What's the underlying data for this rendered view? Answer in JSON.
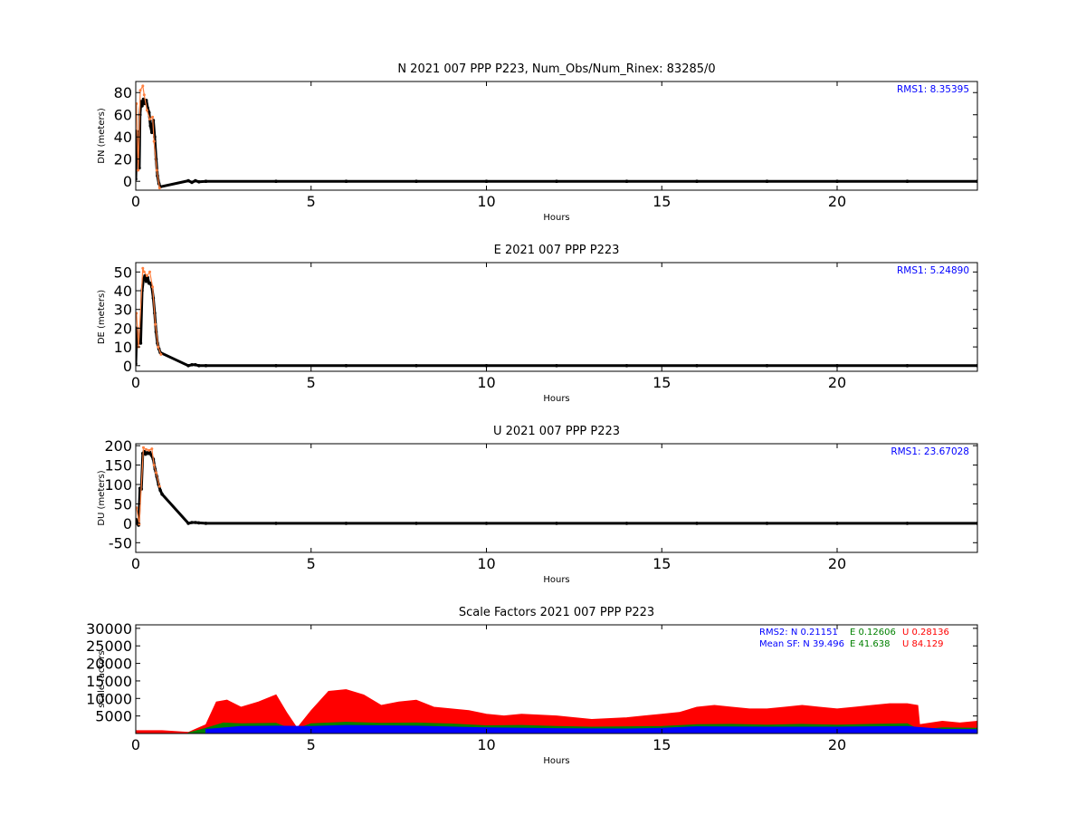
{
  "chart_data": [
    {
      "type": "scatter",
      "title": "N 2021 007 PPP  P223, Num_Obs/Num_Rinex: 83285/0",
      "xlabel": "Hours",
      "ylabel": "DN (meters)",
      "xlim": [
        0,
        24
      ],
      "ylim": [
        -8,
        90
      ],
      "xticks": [
        0,
        5,
        10,
        15,
        20
      ],
      "yticks": [
        0,
        20,
        40,
        60,
        80
      ],
      "annotation": "RMS1:  8.35395",
      "annotation_color": "#0000ff",
      "series": [
        {
          "color": "#000000",
          "points": [
            [
              0.0,
              2
            ],
            [
              0.03,
              45
            ],
            [
              0.06,
              30
            ],
            [
              0.08,
              20
            ],
            [
              0.1,
              12
            ],
            [
              0.12,
              60
            ],
            [
              0.15,
              72
            ],
            [
              0.18,
              68
            ],
            [
              0.22,
              74
            ],
            [
              0.26,
              70
            ],
            [
              0.3,
              73
            ],
            [
              0.34,
              66
            ],
            [
              0.38,
              62
            ],
            [
              0.42,
              50
            ],
            [
              0.46,
              44
            ],
            [
              0.5,
              55
            ],
            [
              0.54,
              40
            ],
            [
              0.58,
              20
            ],
            [
              0.62,
              5
            ],
            [
              0.66,
              -2
            ],
            [
              0.7,
              -5
            ],
            [
              1.5,
              0.5
            ],
            [
              1.6,
              -1
            ],
            [
              1.7,
              0.5
            ],
            [
              1.8,
              -0.5
            ],
            [
              2.0,
              0
            ],
            [
              4,
              0
            ],
            [
              6,
              0
            ],
            [
              8,
              0
            ],
            [
              10,
              0
            ],
            [
              12,
              0
            ],
            [
              14,
              0
            ],
            [
              16,
              0
            ],
            [
              18,
              0
            ],
            [
              20,
              0
            ],
            [
              22,
              0
            ],
            [
              24,
              0
            ]
          ]
        },
        {
          "color": "#ff7f3f",
          "points": [
            [
              0.02,
              70
            ],
            [
              0.07,
              10
            ],
            [
              0.13,
              82
            ],
            [
              0.2,
              86
            ],
            [
              0.24,
              78
            ],
            [
              0.32,
              64
            ],
            [
              0.4,
              56
            ],
            [
              0.48,
              58
            ],
            [
              0.52,
              36
            ],
            [
              0.6,
              10
            ],
            [
              0.68,
              -6
            ]
          ]
        }
      ]
    },
    {
      "type": "scatter",
      "title": "E 2021 007 PPP  P223",
      "xlabel": "Hours",
      "ylabel": "DE (meters)",
      "xlim": [
        0,
        24
      ],
      "ylim": [
        -3,
        55
      ],
      "xticks": [
        0,
        5,
        10,
        15,
        20
      ],
      "yticks": [
        0,
        10,
        20,
        30,
        40,
        50
      ],
      "annotation": "RMS1:  5.24890",
      "annotation_color": "#0000ff",
      "series": [
        {
          "color": "#000000",
          "points": [
            [
              0.0,
              1
            ],
            [
              0.03,
              20
            ],
            [
              0.06,
              12
            ],
            [
              0.1,
              14
            ],
            [
              0.14,
              12
            ],
            [
              0.18,
              40
            ],
            [
              0.22,
              46
            ],
            [
              0.26,
              48
            ],
            [
              0.3,
              45
            ],
            [
              0.34,
              47
            ],
            [
              0.38,
              44
            ],
            [
              0.42,
              44
            ],
            [
              0.46,
              42
            ],
            [
              0.5,
              36
            ],
            [
              0.54,
              28
            ],
            [
              0.58,
              18
            ],
            [
              0.62,
              12
            ],
            [
              0.66,
              9
            ],
            [
              0.7,
              7
            ],
            [
              1.5,
              0
            ],
            [
              1.6,
              0.5
            ],
            [
              1.7,
              0.5
            ],
            [
              1.8,
              0
            ],
            [
              2.0,
              0
            ],
            [
              4,
              0
            ],
            [
              6,
              0
            ],
            [
              8,
              0
            ],
            [
              10,
              0
            ],
            [
              12,
              0
            ],
            [
              14,
              0
            ],
            [
              16,
              0
            ],
            [
              18,
              0
            ],
            [
              20,
              0
            ],
            [
              22,
              0
            ],
            [
              24,
              0
            ]
          ]
        },
        {
          "color": "#ff7f3f",
          "points": [
            [
              0.02,
              28
            ],
            [
              0.08,
              10
            ],
            [
              0.2,
              52
            ],
            [
              0.24,
              50
            ],
            [
              0.32,
              48
            ],
            [
              0.4,
              50
            ],
            [
              0.48,
              42
            ],
            [
              0.56,
              22
            ],
            [
              0.64,
              10
            ],
            [
              0.72,
              6
            ]
          ]
        }
      ]
    },
    {
      "type": "scatter",
      "title": "U 2021 007 PPP  P223",
      "xlabel": "Hours",
      "ylabel": "DU (meters)",
      "xlim": [
        0,
        24
      ],
      "ylim": [
        -75,
        205
      ],
      "xticks": [
        0,
        5,
        10,
        15,
        20
      ],
      "yticks": [
        -50,
        0,
        50,
        100,
        150,
        200
      ],
      "annotation": "RMS1: 23.67028",
      "annotation_color": "#0000ff",
      "series": [
        {
          "color": "#000000",
          "points": [
            [
              0.0,
              10
            ],
            [
              0.04,
              0
            ],
            [
              0.08,
              -5
            ],
            [
              0.12,
              90
            ],
            [
              0.16,
              88
            ],
            [
              0.2,
              180
            ],
            [
              0.24,
              185
            ],
            [
              0.28,
              178
            ],
            [
              0.32,
              182
            ],
            [
              0.36,
              180
            ],
            [
              0.4,
              183
            ],
            [
              0.44,
              176
            ],
            [
              0.5,
              165
            ],
            [
              0.55,
              140
            ],
            [
              0.6,
              120
            ],
            [
              0.65,
              100
            ],
            [
              0.7,
              85
            ],
            [
              0.75,
              75
            ],
            [
              1.5,
              0
            ],
            [
              1.6,
              2
            ],
            [
              1.7,
              2
            ],
            [
              1.8,
              1
            ],
            [
              2.0,
              0
            ],
            [
              4,
              0
            ],
            [
              6,
              0
            ],
            [
              8,
              0
            ],
            [
              10,
              0
            ],
            [
              12,
              0
            ],
            [
              14,
              0
            ],
            [
              16,
              0
            ],
            [
              18,
              0
            ],
            [
              20,
              0
            ],
            [
              22,
              0
            ],
            [
              24,
              0
            ]
          ]
        },
        {
          "color": "#ff7f3f",
          "points": [
            [
              0.02,
              40
            ],
            [
              0.1,
              -2
            ],
            [
              0.22,
              195
            ],
            [
              0.3,
              190
            ],
            [
              0.38,
              188
            ],
            [
              0.46,
              192
            ],
            [
              0.52,
              150
            ],
            [
              0.58,
              130
            ],
            [
              0.68,
              95
            ]
          ]
        }
      ]
    },
    {
      "type": "area",
      "title": "Scale Factors 2021 007 PPP  P223",
      "xlabel": "Hours",
      "ylabel": "scale factors",
      "xlim": [
        0,
        24
      ],
      "ylim": [
        0,
        31000
      ],
      "xticks": [
        0,
        5,
        10,
        15,
        20
      ],
      "yticks": [
        5000,
        10000,
        15000,
        20000,
        25000,
        30000
      ],
      "annotation_lines": [
        [
          {
            "text": "RMS2: N  0.21151",
            "color": "#0000ff"
          },
          {
            "text": "E  0.12606",
            "color": "#008000"
          },
          {
            "text": "U  0.28136",
            "color": "#ff0000"
          }
        ],
        [
          {
            "text": "Mean SF: N  39.496",
            "color": "#0000ff"
          },
          {
            "text": "E  41.638",
            "color": "#008000"
          },
          {
            "text": "U  84.129",
            "color": "#ff0000"
          }
        ]
      ],
      "series": [
        {
          "color": "#ff0000",
          "points": [
            [
              0,
              800
            ],
            [
              0.75,
              800
            ],
            [
              1.5,
              300
            ],
            [
              2.0,
              2500
            ],
            [
              2.3,
              9000
            ],
            [
              2.6,
              9500
            ],
            [
              3.0,
              7500
            ],
            [
              3.5,
              9000
            ],
            [
              4.0,
              11000
            ],
            [
              4.3,
              6000
            ],
            [
              4.6,
              1500
            ],
            [
              5.0,
              6500
            ],
            [
              5.5,
              12000
            ],
            [
              6.0,
              12500
            ],
            [
              6.5,
              11000
            ],
            [
              7.0,
              8000
            ],
            [
              7.5,
              9000
            ],
            [
              8.0,
              9500
            ],
            [
              8.5,
              7500
            ],
            [
              9.0,
              7000
            ],
            [
              9.5,
              6500
            ],
            [
              10.0,
              5500
            ],
            [
              10.5,
              5000
            ],
            [
              11.0,
              5500
            ],
            [
              12.0,
              5000
            ],
            [
              13.0,
              4000
            ],
            [
              14.0,
              4500
            ],
            [
              14.5,
              5000
            ],
            [
              15.0,
              5500
            ],
            [
              15.5,
              6000
            ],
            [
              16.0,
              7500
            ],
            [
              16.5,
              8000
            ],
            [
              17.0,
              7500
            ],
            [
              17.5,
              7000
            ],
            [
              18.0,
              7000
            ],
            [
              18.5,
              7500
            ],
            [
              19.0,
              8000
            ],
            [
              19.5,
              7500
            ],
            [
              20.0,
              7000
            ],
            [
              20.5,
              7500
            ],
            [
              21.0,
              8000
            ],
            [
              21.5,
              8500
            ],
            [
              22.0,
              8500
            ],
            [
              22.3,
              8000
            ],
            [
              22.35,
              2500
            ],
            [
              23.0,
              3500
            ],
            [
              23.5,
              3000
            ],
            [
              24.0,
              3500
            ]
          ]
        },
        {
          "color": "#008000",
          "points": [
            [
              1.5,
              150
            ],
            [
              2.0,
              1500
            ],
            [
              2.5,
              3000
            ],
            [
              3.0,
              2800
            ],
            [
              4.0,
              2900
            ],
            [
              4.5,
              1000
            ],
            [
              5.0,
              2800
            ],
            [
              6.0,
              3200
            ],
            [
              7.0,
              2900
            ],
            [
              8.0,
              3000
            ],
            [
              9.0,
              2700
            ],
            [
              10.0,
              2200
            ],
            [
              11.0,
              2300
            ],
            [
              12.0,
              2000
            ],
            [
              13.0,
              1800
            ],
            [
              14.0,
              1900
            ],
            [
              15.0,
              2000
            ],
            [
              16.0,
              2500
            ],
            [
              17.0,
              2600
            ],
            [
              18.0,
              2400
            ],
            [
              19.0,
              2600
            ],
            [
              20.0,
              2400
            ],
            [
              21.0,
              2600
            ],
            [
              22.0,
              2800
            ],
            [
              22.35,
              1000
            ],
            [
              23.0,
              1600
            ],
            [
              24.0,
              1500
            ]
          ]
        },
        {
          "color": "#0000ff",
          "points": [
            [
              2.0,
              1200
            ],
            [
              3.0,
              2000
            ],
            [
              4.0,
              2100
            ],
            [
              5.0,
              2000
            ],
            [
              6.0,
              2300
            ],
            [
              8.0,
              2100
            ],
            [
              10.0,
              1600
            ],
            [
              12.0,
              1400
            ],
            [
              14.0,
              1300
            ],
            [
              15.0,
              1500
            ],
            [
              16.0,
              1900
            ],
            [
              18.0,
              1800
            ],
            [
              20.0,
              1800
            ],
            [
              22.0,
              2000
            ],
            [
              23.0,
              1200
            ],
            [
              24.0,
              1100
            ]
          ]
        }
      ]
    }
  ]
}
